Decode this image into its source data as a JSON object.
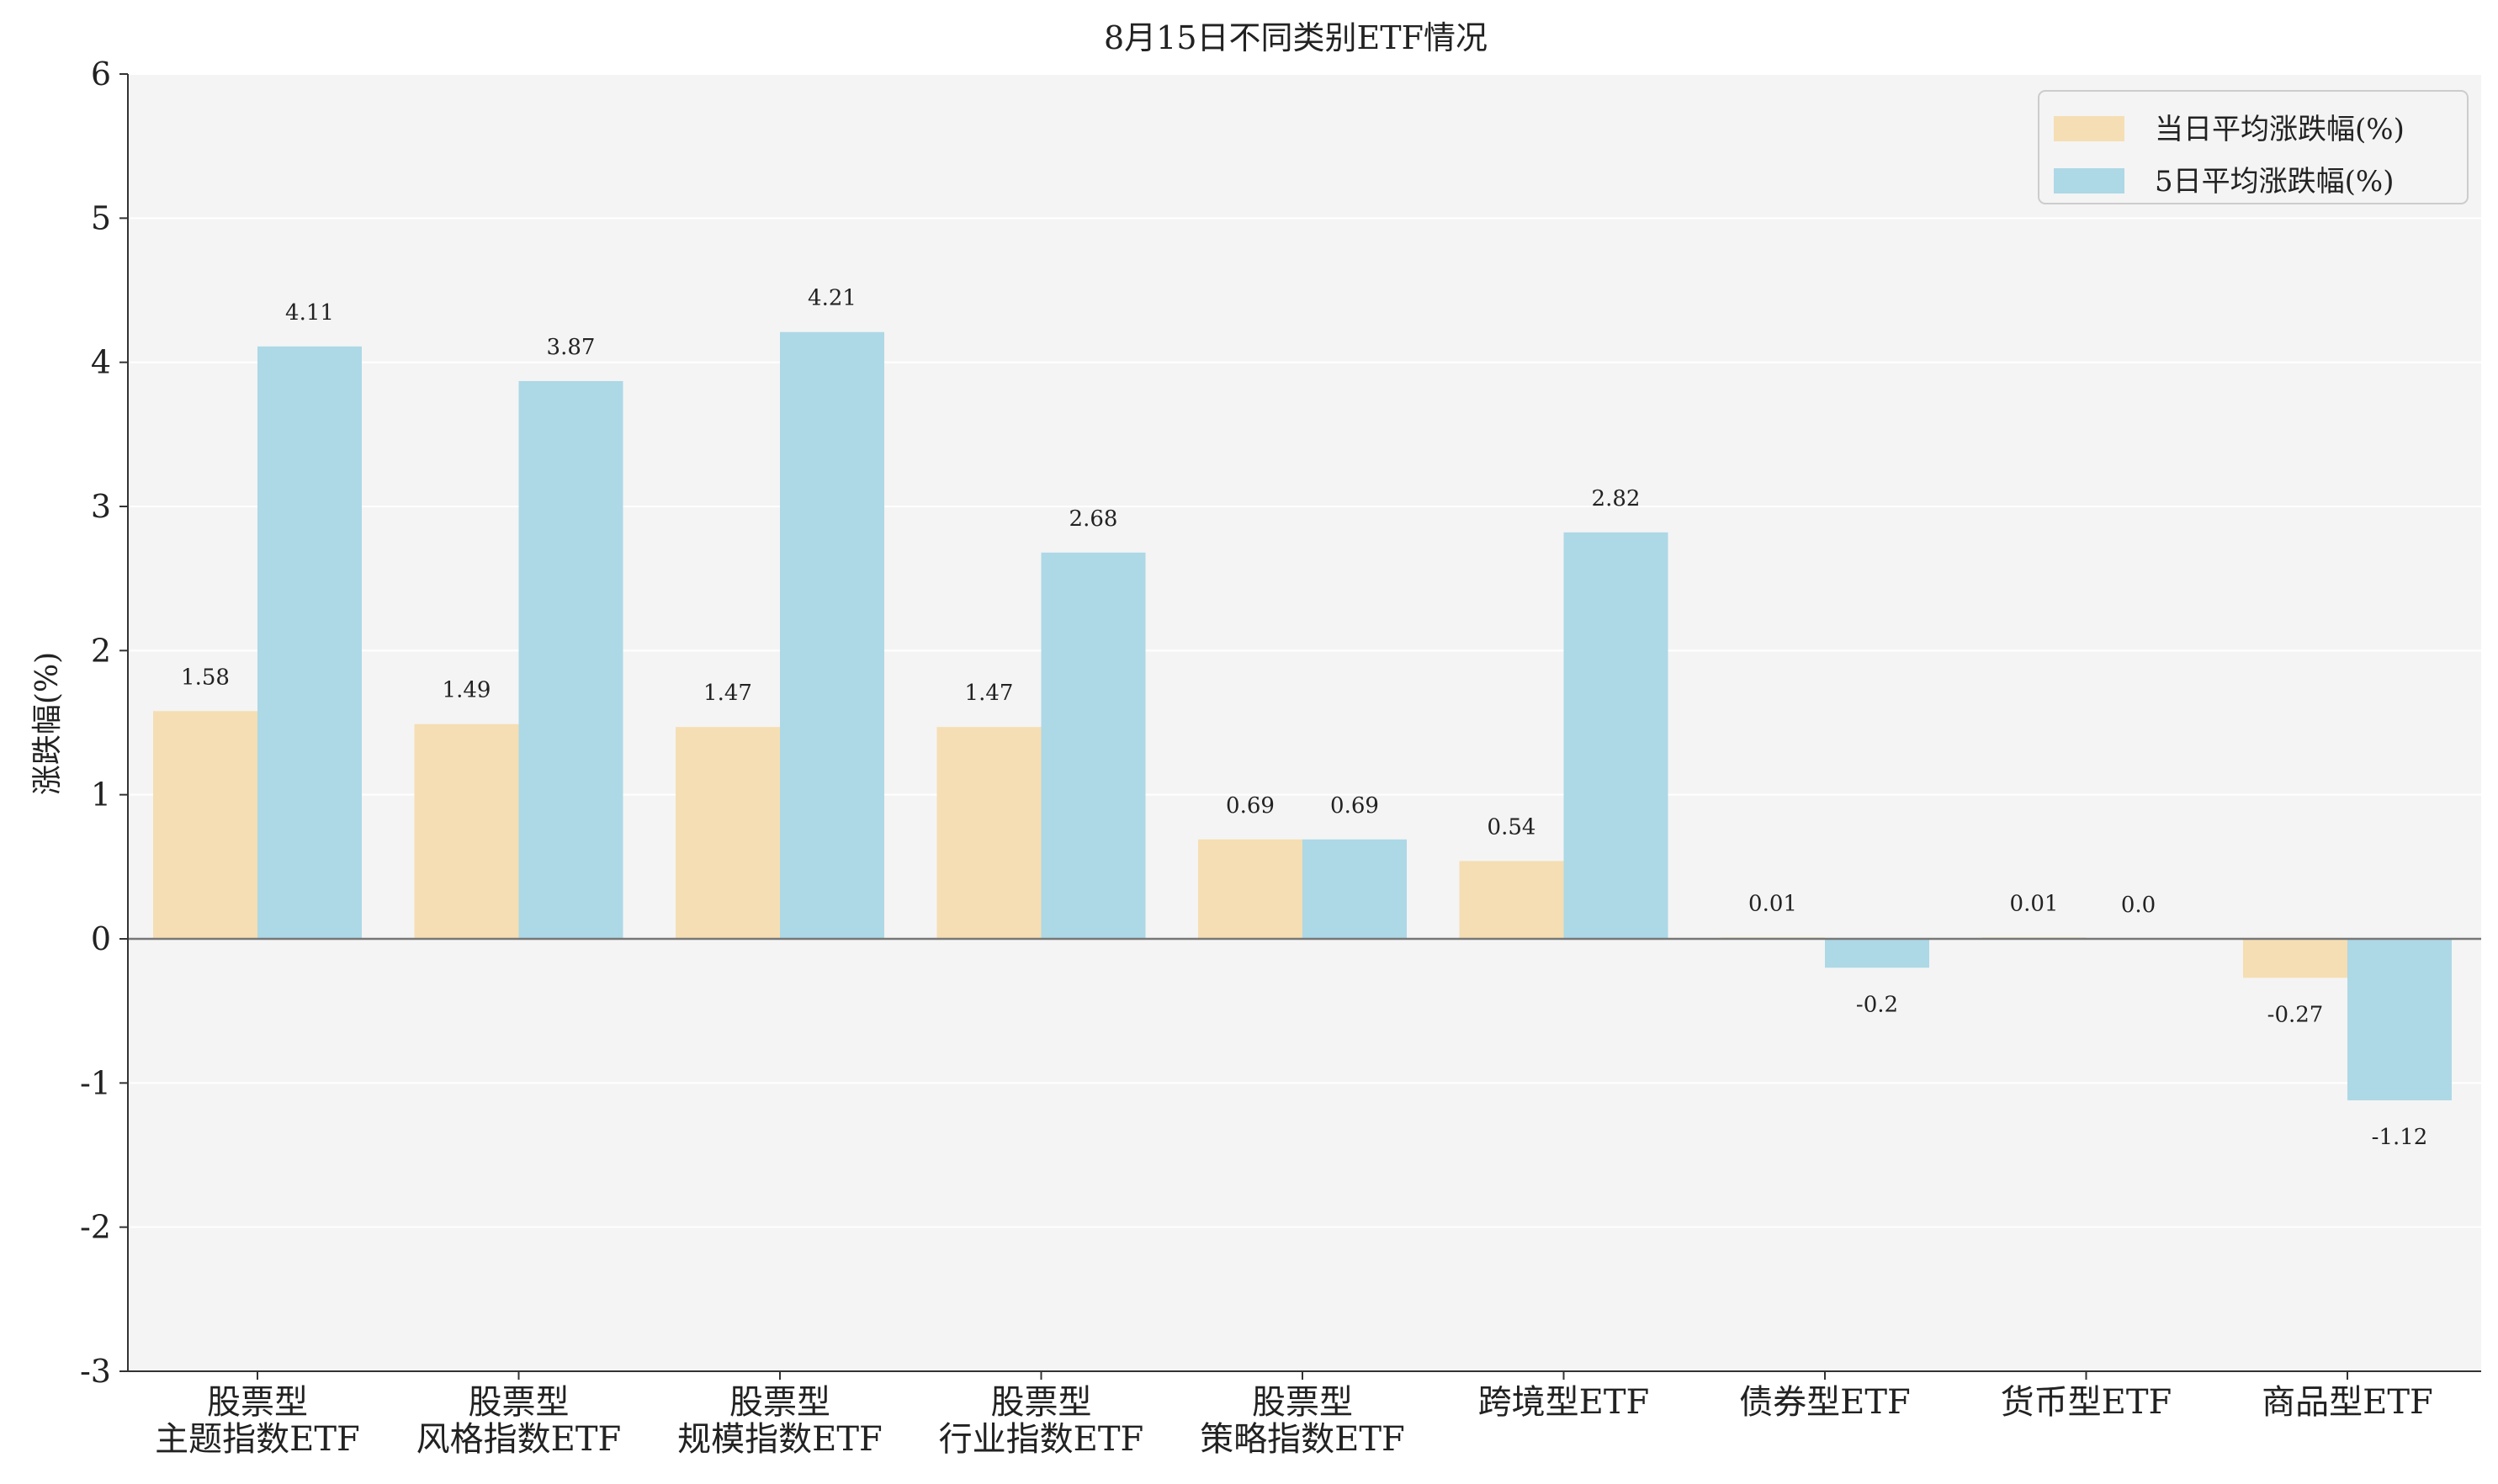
{
  "chart_data": {
    "type": "bar",
    "title": "8月15日不同类别ETF情况",
    "ylabel": "涨跌幅(%)",
    "xlabel": "",
    "ylim": [
      -3,
      6
    ],
    "yticks": [
      "-3",
      "-2",
      "-1",
      "0",
      "1",
      "2",
      "3",
      "4",
      "5",
      "6"
    ],
    "categories": [
      [
        "股票型",
        "主题指数ETF"
      ],
      [
        "股票型",
        "风格指数ETF"
      ],
      [
        "股票型",
        "规模指数ETF"
      ],
      [
        "股票型",
        "行业指数ETF"
      ],
      [
        "股票型",
        "策略指数ETF"
      ],
      [
        "跨境型ETF"
      ],
      [
        "债券型ETF"
      ],
      [
        "货币型ETF"
      ],
      [
        "商品型ETF"
      ]
    ],
    "series": [
      {
        "name": "当日平均涨跌幅(%)",
        "color": "#f5deb3",
        "values": [
          1.58,
          1.49,
          1.47,
          1.47,
          0.69,
          0.54,
          0.01,
          0.01,
          -0.27
        ],
        "labels": [
          "1.58",
          "1.49",
          "1.47",
          "1.47",
          "0.69",
          "0.54",
          "0.01",
          "0.01",
          "-0.27"
        ]
      },
      {
        "name": "5日平均涨跌幅(%)",
        "color": "#add8e6",
        "values": [
          4.11,
          3.87,
          4.21,
          2.68,
          0.69,
          2.82,
          -0.2,
          0.0,
          -1.12
        ],
        "labels": [
          "4.11",
          "3.87",
          "4.21",
          "2.68",
          "0.69",
          "2.82",
          "-0.2",
          "0.0",
          "-1.12"
        ]
      }
    ],
    "grid": true,
    "legend_position": "top-right",
    "plot_background": "#f4f4f4"
  }
}
